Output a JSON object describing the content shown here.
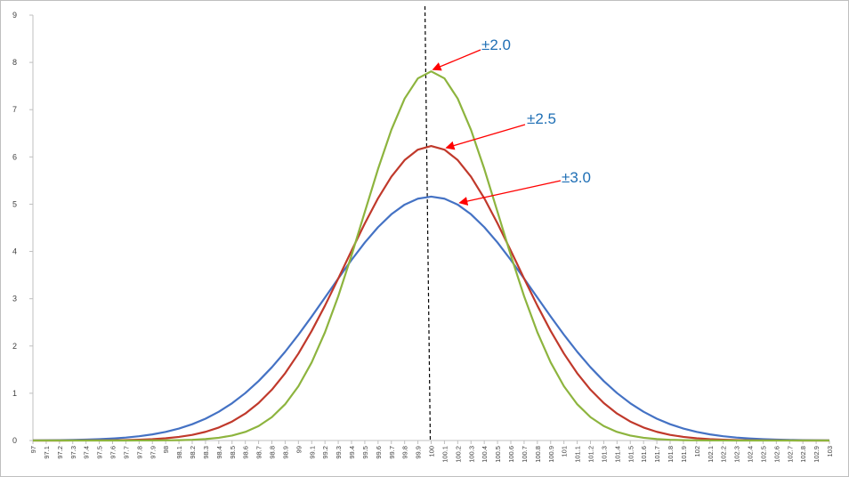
{
  "chart_data": {
    "type": "line",
    "title": "",
    "xlabel": "",
    "ylabel": "",
    "ylim": [
      0,
      9
    ],
    "yticks": [
      "0",
      "1",
      "2",
      "3",
      "4",
      "5",
      "6",
      "7",
      "8",
      "9"
    ],
    "categories": [
      "97",
      "97.1",
      "97.2",
      "97.3",
      "97.4",
      "97.5",
      "97.6",
      "97.7",
      "97.8",
      "97.9",
      "98",
      "98.1",
      "98.2",
      "98.3",
      "98.4",
      "98.5",
      "98.6",
      "98.7",
      "98.8",
      "98.9",
      "99",
      "99.1",
      "99.2",
      "99.3",
      "99.4",
      "99.5",
      "99.6",
      "99.7",
      "99.8",
      "99.9",
      "100",
      "100.1",
      "100.2",
      "100.3",
      "100.4",
      "100.5",
      "100.6",
      "100.7",
      "100.8",
      "100.9",
      "101",
      "101.1",
      "101.2",
      "101.3",
      "101.4",
      "101.5",
      "101.6",
      "101.7",
      "101.8",
      "101.9",
      "102",
      "102.1",
      "102.2",
      "102.3",
      "102.4",
      "102.5",
      "102.6",
      "102.7",
      "102.8",
      "102.9",
      "103"
    ],
    "series": [
      {
        "name": "±3.0",
        "color": "#4472c4",
        "mean": 100,
        "sigma": 0.7737,
        "peak": 5.16
      },
      {
        "name": "±2.5",
        "color": "#c0392b",
        "mean": 100,
        "sigma": 0.6402,
        "peak": 6.23
      },
      {
        "name": "±2.0",
        "color": "#8db43e",
        "mean": 100,
        "sigma": 0.5107,
        "peak": 7.81
      }
    ],
    "reference_line": {
      "x": "100",
      "style": "dashed",
      "color": "#000000"
    },
    "annotations": [
      {
        "text": "±2.0",
        "series": "±2.0",
        "target_x": 100,
        "text_color": "#1f6fb5",
        "arrow_color": "#ff0000"
      },
      {
        "text": "±2.5",
        "series": "±2.5",
        "target_x": 100.1,
        "text_color": "#1f6fb5",
        "arrow_color": "#ff0000"
      },
      {
        "text": "±3.0",
        "series": "±3.0",
        "target_x": 100.2,
        "text_color": "#1f6fb5",
        "arrow_color": "#ff0000"
      }
    ],
    "grid": false,
    "legend": "none"
  }
}
